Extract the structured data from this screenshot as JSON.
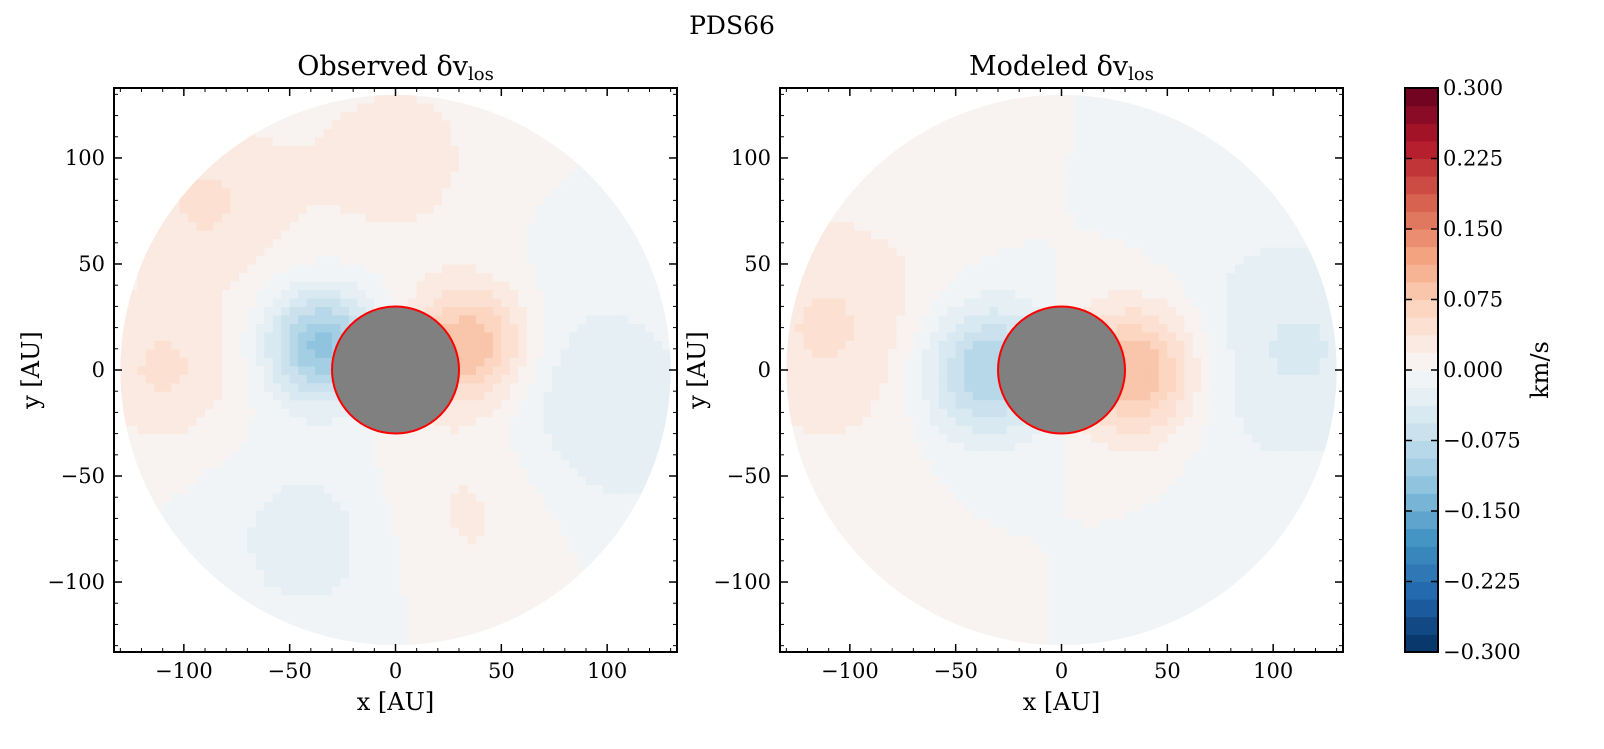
{
  "figure": {
    "suptitle": "PDS66"
  },
  "chart_data": [
    {
      "type": "heatmap",
      "title": "Observed δv",
      "title_subscript": "los",
      "xlabel": "x [AU]",
      "ylabel": "y [AU]",
      "xlim": [
        -133,
        133
      ],
      "ylim": [
        -133,
        133
      ],
      "xticks": [
        -100,
        -50,
        0,
        50,
        100
      ],
      "yticks": [
        -100,
        -50,
        0,
        50,
        100
      ],
      "xtick_labels": [
        "−100",
        "−50",
        "0",
        "50",
        "100"
      ],
      "ytick_labels": [
        "−100",
        "−50",
        "0",
        "50",
        "100"
      ],
      "disk_radius_au": 130,
      "masked_inner_radius_au": 30,
      "mask_color": "#808080",
      "mask_edge_color": "#ff0000",
      "field": {
        "description_units": "km/s",
        "features": [
          {
            "x": -35,
            "y": 12,
            "sigma": 18,
            "value": -0.12
          },
          {
            "x": 35,
            "y": 12,
            "sigma": 20,
            "value": 0.1
          },
          {
            "x": -90,
            "y": 80,
            "sigma": 30,
            "value": 0.04
          },
          {
            "x": 90,
            "y": -20,
            "sigma": 40,
            "value": -0.04
          },
          {
            "x": 40,
            "y": -60,
            "sigma": 35,
            "value": 0.03
          },
          {
            "x": -40,
            "y": -80,
            "sigma": 30,
            "value": -0.03
          },
          {
            "x": 0,
            "y": 100,
            "sigma": 30,
            "value": 0.03
          },
          {
            "x": -110,
            "y": 0,
            "sigma": 25,
            "value": 0.04
          }
        ]
      }
    },
    {
      "type": "heatmap",
      "title": "Modeled δv",
      "title_subscript": "los",
      "xlabel": "x [AU]",
      "ylabel": "y [AU]",
      "xlim": [
        -133,
        133
      ],
      "ylim": [
        -133,
        133
      ],
      "xticks": [
        -100,
        -50,
        0,
        50,
        100
      ],
      "yticks": [
        -100,
        -50,
        0,
        50,
        100
      ],
      "xtick_labels": [
        "−100",
        "−50",
        "0",
        "50",
        "100"
      ],
      "ytick_labels": [
        "−100",
        "−50",
        "0",
        "50",
        "100"
      ],
      "disk_radius_au": 130,
      "masked_inner_radius_au": 30,
      "mask_color": "#808080",
      "mask_edge_color": "#ff0000",
      "field": {
        "description_units": "km/s",
        "features": [
          {
            "x": -35,
            "y": 0,
            "sigma": 22,
            "value": -0.1
          },
          {
            "x": 35,
            "y": 0,
            "sigma": 22,
            "value": 0.1
          },
          {
            "x": -110,
            "y": 20,
            "sigma": 40,
            "value": 0.04
          },
          {
            "x": 110,
            "y": 10,
            "sigma": 40,
            "value": -0.04
          }
        ]
      }
    }
  ],
  "colorbar": {
    "label": "km/s",
    "vmin": -0.3,
    "vmax": 0.3,
    "levels": 32,
    "colormap": "RdBu_r",
    "ticks": [
      0.3,
      0.225,
      0.15,
      0.075,
      0.0,
      -0.075,
      -0.15,
      -0.225,
      -0.3
    ],
    "tick_labels": [
      "0.300",
      "0.225",
      "0.150",
      "0.075",
      "0.000",
      "−0.075",
      "−0.150",
      "−0.225",
      "−0.300"
    ],
    "colors": [
      "#053061",
      "#2166ac",
      "#4393c3",
      "#92c5de",
      "#d1e5f0",
      "#f7f7f7",
      "#fddbc7",
      "#f4a582",
      "#d6604d",
      "#b2182b",
      "#67001f"
    ]
  }
}
